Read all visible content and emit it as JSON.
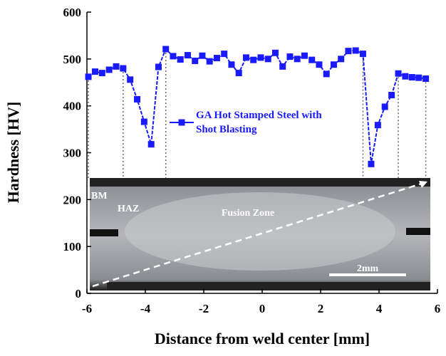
{
  "chart_data": {
    "type": "line",
    "x_label": "Distance from weld center [mm]",
    "y_label": "Hardness [HV]",
    "x": [
      -5.95,
      -5.72,
      -5.48,
      -5.24,
      -5.0,
      -4.76,
      -4.52,
      -4.28,
      -4.04,
      -3.8,
      -3.55,
      -3.3,
      -3.05,
      -2.8,
      -2.55,
      -2.3,
      -2.05,
      -1.8,
      -1.55,
      -1.3,
      -1.05,
      -0.8,
      -0.55,
      -0.3,
      -0.05,
      0.2,
      0.45,
      0.7,
      0.95,
      1.2,
      1.45,
      1.7,
      1.95,
      2.2,
      2.45,
      2.7,
      2.95,
      3.2,
      3.45,
      3.73,
      3.96,
      4.2,
      4.43,
      4.66,
      4.9,
      5.13,
      5.36,
      5.6
    ],
    "series": [
      {
        "name": "GA Hot Stamped Steel with Shot Blasting",
        "color": "#1a1aff",
        "values": [
          462,
          473,
          470,
          477,
          484,
          480,
          456,
          414,
          366,
          318,
          483,
          521,
          506,
          499,
          508,
          496,
          507,
          495,
          502,
          511,
          488,
          470,
          503,
          498,
          503,
          500,
          513,
          484,
          505,
          500,
          507,
          498,
          488,
          468,
          488,
          500,
          517,
          518,
          511,
          276,
          359,
          398,
          423,
          469,
          463,
          461,
          460,
          458
        ]
      }
    ],
    "xlim": [
      -6,
      6
    ],
    "xticks": [
      -6,
      -4,
      -2,
      0,
      2,
      4,
      6
    ],
    "ylim": [
      0,
      600
    ],
    "yticks": [
      0,
      100,
      200,
      300,
      400,
      500,
      600
    ],
    "annotations": [
      "BM",
      "HAZ",
      "Fusion Zone",
      "2mm"
    ]
  }
}
